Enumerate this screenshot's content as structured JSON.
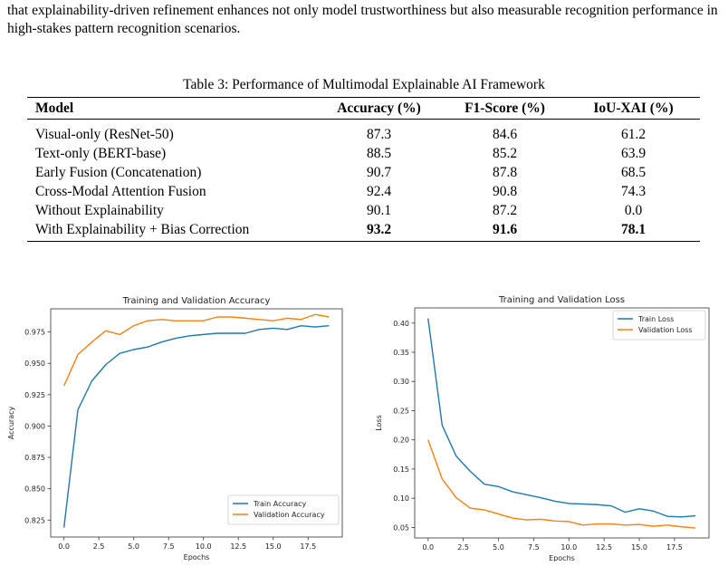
{
  "intro_text": "that explainability-driven refinement enhances not only model trustworthiness but also measurable recognition performance in high-stakes pattern recognition scenarios.",
  "table": {
    "caption": "Table 3: Performance of Multimodal Explainable AI Framework",
    "headers": [
      "Model",
      "Accuracy (%)",
      "F1-Score (%)",
      "IoU-XAI (%)"
    ],
    "rows": [
      {
        "model": "Visual-only (ResNet-50)",
        "accuracy": "87.3",
        "f1": "84.6",
        "iou": "61.2",
        "bold": false
      },
      {
        "model": "Text-only (BERT-base)",
        "accuracy": "88.5",
        "f1": "85.2",
        "iou": "63.9",
        "bold": false
      },
      {
        "model": "Early Fusion (Concatenation)",
        "accuracy": "90.7",
        "f1": "87.8",
        "iou": "68.5",
        "bold": false
      },
      {
        "model": "Cross-Modal Attention Fusion",
        "accuracy": "92.4",
        "f1": "90.8",
        "iou": "74.3",
        "bold": false
      },
      {
        "model": "Without Explainability",
        "accuracy": "90.1",
        "f1": "87.2",
        "iou": "0.0",
        "bold": false
      },
      {
        "model": "With Explainability + Bias Correction",
        "accuracy": "93.2",
        "f1": "91.6",
        "iou": "78.1",
        "bold": true
      }
    ]
  },
  "chart_data": [
    {
      "type": "line",
      "title": "Training and Validation Accuracy",
      "xlabel": "Epochs",
      "ylabel": "Accuracy",
      "xlim": [
        -0.95,
        19.95
      ],
      "ylim": [
        0.8115,
        0.9935
      ],
      "xticks": [
        0.0,
        2.5,
        5.0,
        7.5,
        10.0,
        12.5,
        15.0,
        17.5
      ],
      "xtick_labels": [
        "0.0",
        "2.5",
        "5.0",
        "7.5",
        "10.0",
        "12.5",
        "15.0",
        "17.5"
      ],
      "yticks": [
        0.825,
        0.85,
        0.875,
        0.9,
        0.925,
        0.95,
        0.975
      ],
      "ytick_labels": [
        "0.825",
        "0.850",
        "0.875",
        "0.900",
        "0.925",
        "0.950",
        "0.975"
      ],
      "grid": false,
      "legend_position": "lower-right",
      "x": [
        0,
        1,
        2,
        3,
        4,
        5,
        6,
        7,
        8,
        9,
        10,
        11,
        12,
        13,
        14,
        15,
        16,
        17,
        18,
        19
      ],
      "series": [
        {
          "name": "Train Accuracy",
          "color": "#1f77b4",
          "values": [
            0.819,
            0.913,
            0.936,
            0.949,
            0.958,
            0.961,
            0.963,
            0.967,
            0.97,
            0.972,
            0.973,
            0.974,
            0.974,
            0.974,
            0.977,
            0.978,
            0.977,
            0.98,
            0.979,
            0.98
          ]
        },
        {
          "name": "Validation Accuracy",
          "color": "#ff7f0e",
          "values": [
            0.932,
            0.957,
            0.967,
            0.976,
            0.973,
            0.98,
            0.984,
            0.985,
            0.984,
            0.984,
            0.984,
            0.987,
            0.987,
            0.986,
            0.985,
            0.984,
            0.986,
            0.985,
            0.989,
            0.987
          ]
        }
      ]
    },
    {
      "type": "line",
      "title": "Training and Validation Loss",
      "xlabel": "Epochs",
      "ylabel": "Loss",
      "xlim": [
        -0.95,
        19.95
      ],
      "ylim": [
        0.032,
        0.426
      ],
      "xticks": [
        0.0,
        2.5,
        5.0,
        7.5,
        10.0,
        12.5,
        15.0,
        17.5
      ],
      "xtick_labels": [
        "0.0",
        "2.5",
        "5.0",
        "7.5",
        "10.0",
        "12.5",
        "15.0",
        "17.5"
      ],
      "yticks": [
        0.05,
        0.1,
        0.15,
        0.2,
        0.25,
        0.3,
        0.35,
        0.4
      ],
      "ytick_labels": [
        "0.05",
        "0.10",
        "0.15",
        "0.20",
        "0.25",
        "0.30",
        "0.35",
        "0.40"
      ],
      "grid": false,
      "legend_position": "upper-right",
      "x": [
        0,
        1,
        2,
        3,
        4,
        5,
        6,
        7,
        8,
        9,
        10,
        11,
        12,
        13,
        14,
        15,
        16,
        17,
        18,
        19
      ],
      "series": [
        {
          "name": "Train Loss",
          "color": "#1f77b4",
          "values": [
            0.408,
            0.225,
            0.172,
            0.146,
            0.124,
            0.12,
            0.111,
            0.106,
            0.101,
            0.095,
            0.091,
            0.09,
            0.089,
            0.087,
            0.076,
            0.082,
            0.078,
            0.069,
            0.068,
            0.07
          ]
        },
        {
          "name": "Validation Loss",
          "color": "#ff7f0e",
          "values": [
            0.2,
            0.133,
            0.101,
            0.083,
            0.08,
            0.073,
            0.066,
            0.063,
            0.064,
            0.061,
            0.06,
            0.054,
            0.056,
            0.056,
            0.054,
            0.055,
            0.052,
            0.054,
            0.051,
            0.049
          ]
        }
      ]
    }
  ]
}
